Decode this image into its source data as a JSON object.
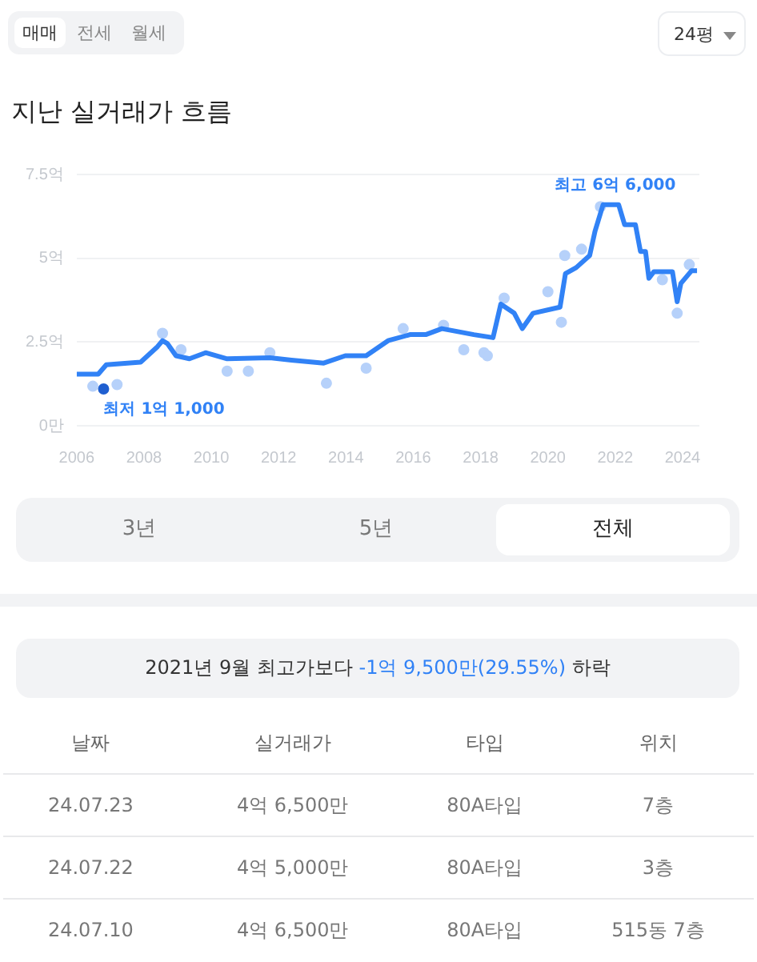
{
  "chart_data": {
    "type": "line",
    "title": "지난 실거래가 흐름",
    "xlim": [
      2006,
      2024.5
    ],
    "xticks": [
      2006,
      2008,
      2010,
      2012,
      2014,
      2016,
      2018,
      2020,
      2022,
      2024
    ],
    "ylim": [
      0,
      7.5
    ],
    "yticks": [
      {
        "value": 0,
        "label": "0만"
      },
      {
        "value": 2.5,
        "label": "2.5억"
      },
      {
        "value": 5,
        "label": "5억"
      },
      {
        "value": 7.5,
        "label": "7.5억"
      }
    ],
    "grid": "y",
    "legend": false,
    "series": [
      {
        "type": "scatter",
        "color": "#b6d1fa",
        "marker": "circle",
        "x": [
          2006.48,
          2007.2,
          2008.55,
          2009.1,
          2010.47,
          2011.1,
          2011.74,
          2013.42,
          2014.6,
          2015.7,
          2016.9,
          2017.5,
          2018.1,
          2018.2,
          2018.7,
          2020.0,
          2020.4,
          2020.5,
          2021.0,
          2021.56,
          2023.4,
          2023.84,
          2024.2
        ],
        "values": [
          1.18,
          1.23,
          2.76,
          2.27,
          1.63,
          1.63,
          2.18,
          1.27,
          1.72,
          2.9,
          3.0,
          2.27,
          2.18,
          2.09,
          3.81,
          4.0,
          3.09,
          5.08,
          5.27,
          6.54,
          4.36,
          3.36,
          4.81
        ]
      },
      {
        "type": "line",
        "color": "#3182f6",
        "marker": "none",
        "line_style": "solid",
        "x": [
          2006.0,
          2006.64,
          2006.88,
          2007.9,
          2008.4,
          2008.55,
          2008.7,
          2008.95,
          2009.35,
          2009.83,
          2010.47,
          2011.74,
          2012.38,
          2013.34,
          2013.98,
          2014.6,
          2015.25,
          2015.9,
          2016.37,
          2016.85,
          2017.33,
          2017.8,
          2018.37,
          2018.6,
          2019.0,
          2019.24,
          2019.56,
          2020.36,
          2020.52,
          2020.84,
          2021.24,
          2021.4,
          2021.64,
          2022.1,
          2022.28,
          2022.6,
          2022.75,
          2022.9,
          2023.0,
          2023.15,
          2023.7,
          2023.84,
          2023.95,
          2024.27,
          2024.43
        ],
        "values": [
          1.54,
          1.54,
          1.82,
          1.9,
          2.36,
          2.54,
          2.45,
          2.09,
          2.0,
          2.18,
          2.0,
          2.03,
          1.96,
          1.87,
          2.09,
          2.09,
          2.54,
          2.72,
          2.72,
          2.9,
          2.81,
          2.72,
          2.63,
          3.63,
          3.36,
          2.9,
          3.36,
          3.54,
          4.54,
          4.72,
          5.08,
          5.81,
          6.6,
          6.6,
          6.0,
          6.0,
          5.2,
          5.2,
          4.4,
          4.6,
          4.6,
          3.7,
          4.25,
          4.63,
          4.63
        ]
      },
      {
        "type": "scatter",
        "color": "#1f5fd0",
        "marker": "circle",
        "x": [
          2006.8
        ],
        "values": [
          1.1
        ]
      }
    ],
    "annotations": [
      {
        "text": "최고 6억 6,000",
        "x": 2022.0,
        "y": 6.6
      },
      {
        "text": "최저 1억 1,000",
        "x": 2006.8,
        "y": 1.1
      },
      "매매",
      "전세",
      "월세",
      "24평",
      "3년",
      "5년",
      "전체",
      "2021년 9월 최고가보다",
      "-1억 9,500만(29.55%)",
      "하락",
      "날짜",
      "실거래가",
      "타입",
      "위치",
      "24.07.23",
      "4억 6,500만",
      "80A타입",
      "7층",
      "24.07.22",
      "4억 5,000만",
      "80A타입",
      "3층",
      "24.07.10",
      "4억 6,500만",
      "80A타입",
      "515동 7층"
    ]
  }
}
